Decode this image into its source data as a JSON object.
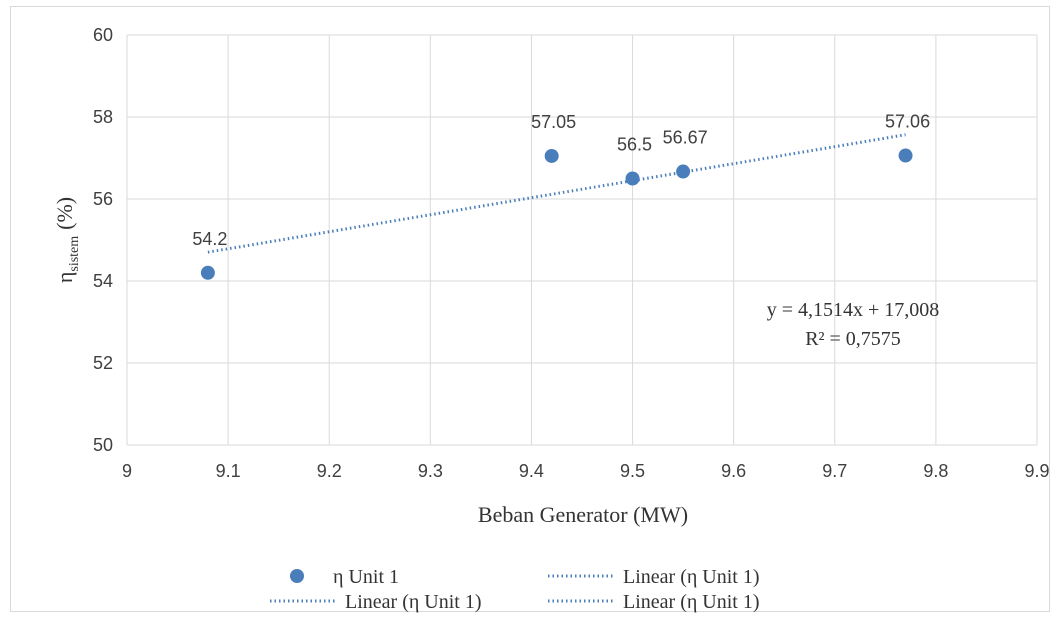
{
  "chart_data": {
    "type": "scatter",
    "title": "",
    "xlabel": "Beban Generator (MW)",
    "ylabel_main": "η",
    "ylabel_sub": "sistem",
    "ylabel_unit": "(%)",
    "xlim": [
      9,
      9.9
    ],
    "ylim": [
      50,
      60
    ],
    "xticks": [
      9,
      9.1,
      9.2,
      9.3,
      9.4,
      9.5,
      9.6,
      9.7,
      9.8,
      9.9
    ],
    "yticks": [
      50,
      52,
      54,
      56,
      58,
      60
    ],
    "xtick_labels": [
      "9",
      "9.1",
      "9.2",
      "9.3",
      "9.4",
      "9.5",
      "9.6",
      "9.7",
      "9.8",
      "9.9"
    ],
    "ytick_labels": [
      "50",
      "52",
      "54",
      "56",
      "58",
      "60"
    ],
    "grid": true,
    "series": [
      {
        "name": "η Unit 1",
        "color": "#4a7ebb",
        "points": [
          {
            "x": 9.08,
            "y": 54.2,
            "label": "54.2"
          },
          {
            "x": 9.42,
            "y": 57.05,
            "label": "57.05"
          },
          {
            "x": 9.5,
            "y": 56.5,
            "label": "56.5"
          },
          {
            "x": 9.55,
            "y": 56.67,
            "label": "56.67"
          },
          {
            "x": 9.77,
            "y": 57.06,
            "label": "57.06"
          }
        ]
      }
    ],
    "trendline": {
      "type": "linear",
      "color": "#4a7ebb",
      "slope": 4.1514,
      "intercept": 17.008,
      "x_range": [
        9.08,
        9.77
      ],
      "equation": "y = 4,1514x + 17,008",
      "r_squared": "R² = 0,7575"
    },
    "legend": {
      "placement": "bottom",
      "entries": [
        {
          "label": "η Unit 1",
          "kind": "marker"
        },
        {
          "label": "Linear (η Unit 1)",
          "kind": "dotted-line"
        },
        {
          "label": "Linear (η Unit 1)",
          "kind": "dotted-line"
        },
        {
          "label": "Linear (η Unit 1)",
          "kind": "dotted-line"
        }
      ]
    }
  }
}
